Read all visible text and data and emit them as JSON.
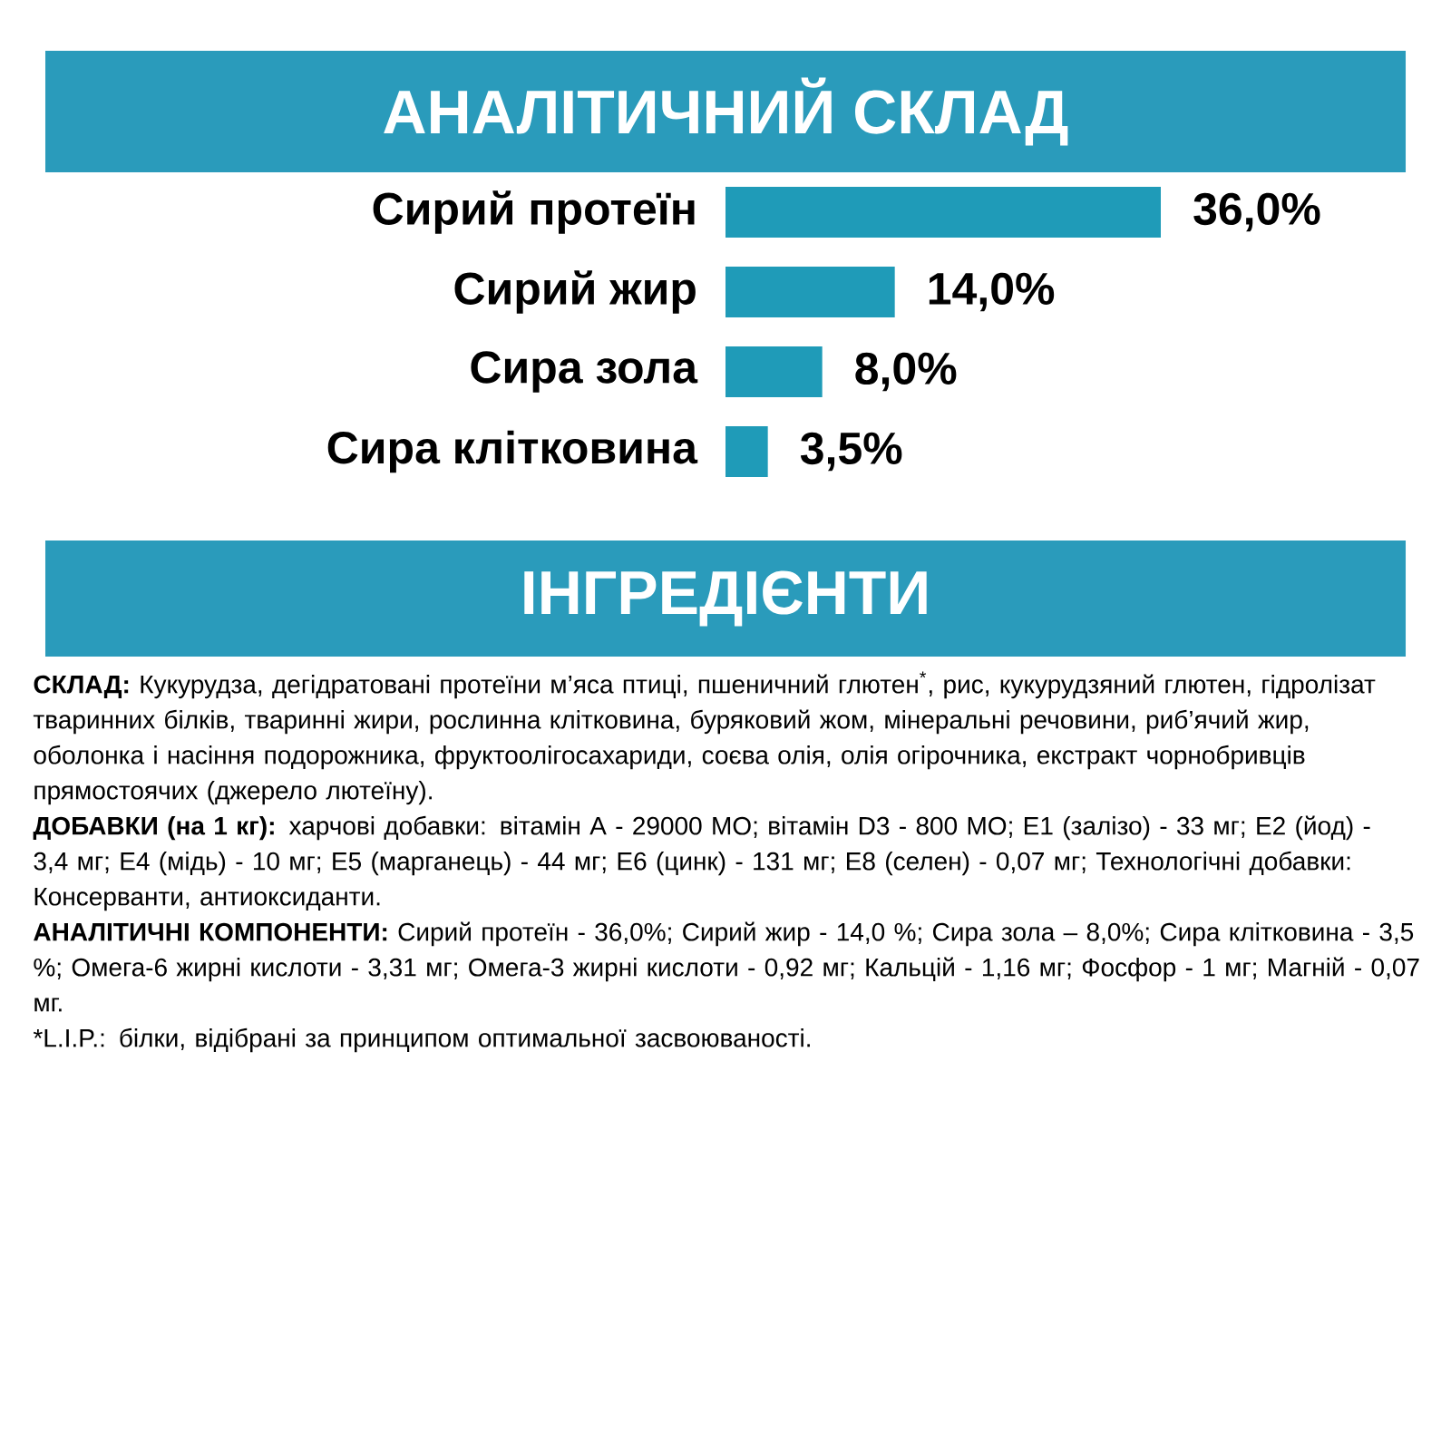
{
  "chart_data": {
    "type": "bar",
    "orientation": "horizontal",
    "title": "АНАЛІТИЧНИЙ СКЛАД",
    "categories": [
      "Сирий протеїн",
      "Сирий жир",
      "Сира зола",
      "Сира клітковина"
    ],
    "values": [
      36.0,
      14.0,
      8.0,
      3.5
    ],
    "value_labels": [
      "36,0%",
      "14,0%",
      "8,0%",
      "3,5%"
    ],
    "color": "#1f9bb8",
    "annotations": [
      "ІНГРЕДІЄНТИ",
      "**СКЛАД:** Кукурудза, дегідратовані протеїни м’яса птиці, пшеничний глютен$^{*}$, рис, кукурудзяний глютен, гідролізат тваринних білків, тваринні жири, рослинна клітковина, буряковий жом, мінеральні речовини, риб’ячий жир, оболонка і насіння подорожника, фруктоолігосахариди, соєва олія, олія огірочника, екстракт чорнобривців прямостоячих (джерело лютеїну).",
      "**ДОБАВКИ (на 1 кг):** харчові добавки: вітамін A - 29000 МО; вітамін D3 - 800 МО; E1 (залізо) - 33 мг; E2 (йод) - 3,4 мг; E4 (мідь) - 10 мг; E5 (марганець) - 44 мг; E6 (цинк) - 131 мг; E8 (селен) - 0,07 мг; Технологічні добавки: Консерванти, антиоксиданти.",
      "**АНАЛІТИЧНІ КОМПОНЕНТИ:** Сирий протеїн - 36,0%; Сирий жир - 14,0 %; Сира зола – 8,0%; Сира клітковина - 3,5 %; Омега-6 жирні кислоти - 3,31 мг; Омега-3 жирні кислоти - 0,92 мг; Кальцій - 1,16 мг; Фосфор - 1 мг; Магній - 0,07 мг.",
      "*L.I.P.: білки, відібрані за принципом оптимальної засвоюваності."
    ]
  }
}
